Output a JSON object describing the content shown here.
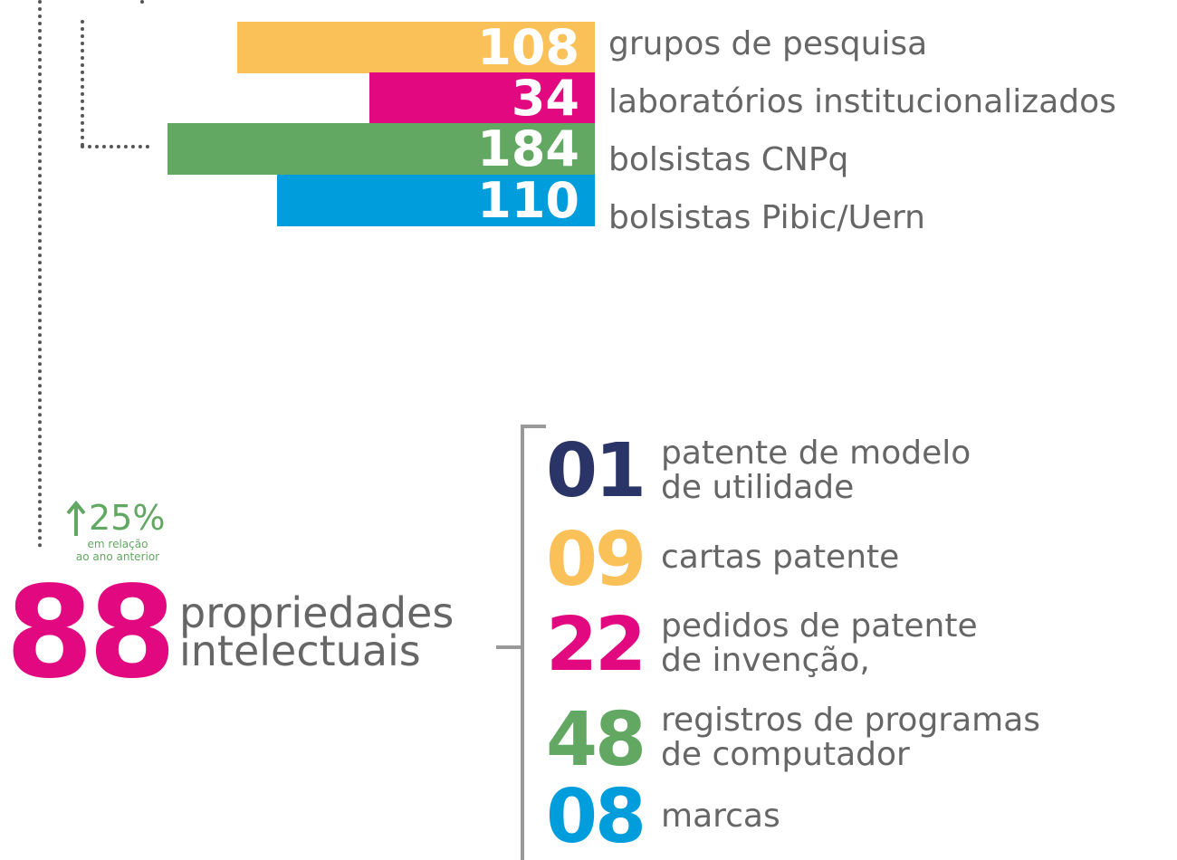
{
  "bars": [
    {
      "value": "108",
      "label": "grupos de pesquisa"
    },
    {
      "value": "34",
      "label": "laboratórios institucionalizados"
    },
    {
      "value": "184",
      "label": "bolsistas CNPq"
    },
    {
      "value": "110",
      "label": "bolsistas Pibic/Uern"
    }
  ],
  "growth": {
    "value": "25%",
    "note": [
      "em relação",
      "ao ano anterior"
    ]
  },
  "total": {
    "value": "88",
    "label": [
      "propriedades",
      "intelectuais"
    ]
  },
  "items": [
    {
      "value": "01",
      "lines": [
        "patente de modelo",
        "de utilidade"
      ]
    },
    {
      "value": "09",
      "lines": [
        "cartas patente"
      ]
    },
    {
      "value": "22",
      "lines": [
        "pedidos de patente",
        "de invenção,"
      ]
    },
    {
      "value": "48",
      "lines": [
        "registros de programas",
        "de computador"
      ]
    },
    {
      "value": "08",
      "lines": [
        "marcas"
      ]
    }
  ]
}
